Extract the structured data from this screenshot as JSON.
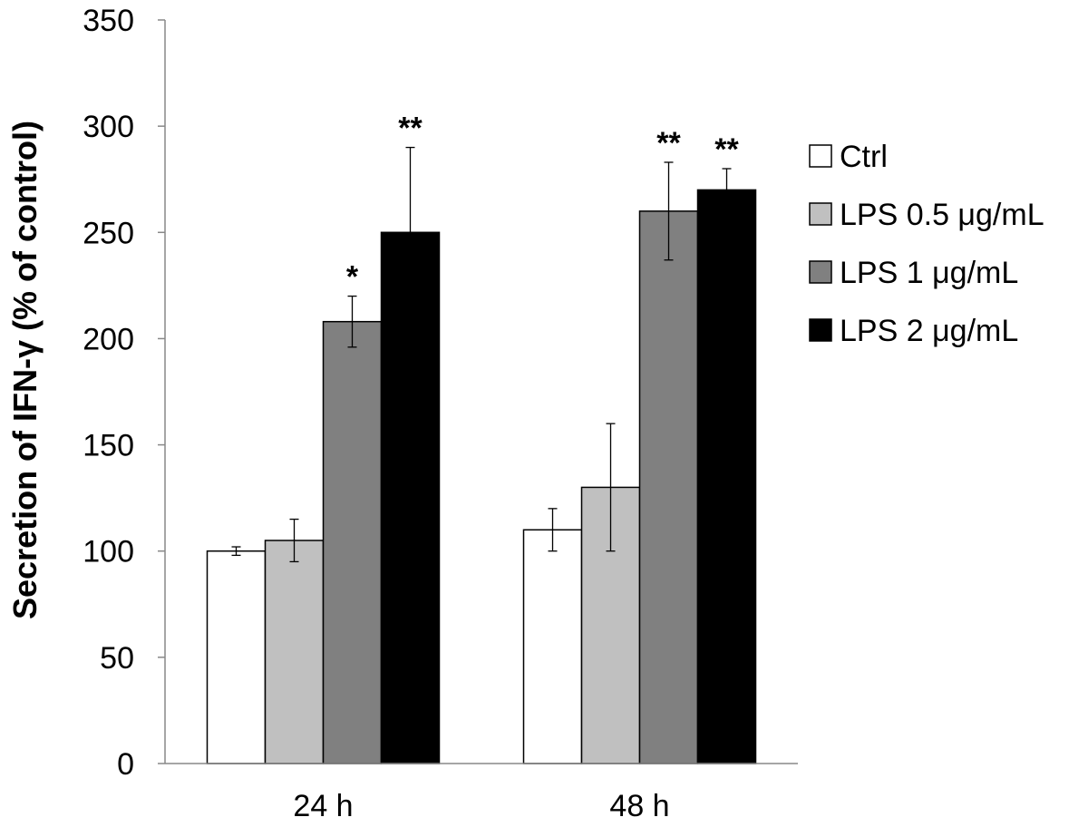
{
  "chart_data": {
    "type": "bar",
    "title": "",
    "xlabel": "",
    "ylabel": "Secretion of IFN-γ (% of control)",
    "ylim": [
      0,
      350
    ],
    "yticks": [
      0,
      50,
      100,
      150,
      200,
      250,
      300,
      350
    ],
    "grid": false,
    "legend_position": "right",
    "categories": [
      "24 h",
      "48 h"
    ],
    "series": [
      {
        "name": "Ctrl",
        "color": "#ffffff",
        "values": [
          100,
          110
        ],
        "errors": [
          2,
          10
        ],
        "annotations": [
          "",
          ""
        ]
      },
      {
        "name": "LPS 0.5 μg/mL",
        "color": "#c0c0c0",
        "values": [
          105,
          130
        ],
        "errors": [
          10,
          30
        ],
        "annotations": [
          "",
          ""
        ]
      },
      {
        "name": "LPS 1 μg/mL",
        "color": "#808080",
        "values": [
          208,
          260
        ],
        "errors": [
          12,
          23
        ],
        "annotations": [
          "*",
          "**"
        ]
      },
      {
        "name": "LPS 2 μg/mL",
        "color": "#000000",
        "values": [
          250,
          270
        ],
        "errors": [
          40,
          10
        ],
        "annotations": [
          "**",
          "**"
        ]
      }
    ]
  }
}
